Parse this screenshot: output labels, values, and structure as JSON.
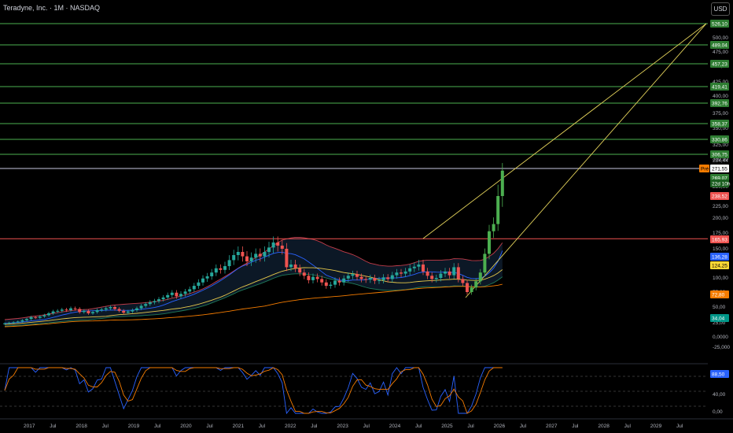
{
  "header": {
    "title": "Teradyne, Inc. · 1M · NASDAQ",
    "currency_label": "USD"
  },
  "colors": {
    "background": "#000000",
    "up": "#26a69a",
    "up_bright": "#4caf50",
    "down": "#ef5350",
    "hline_green": "#4caf50",
    "hline_red": "#ef5350",
    "trendline": "#e2d15a",
    "bb_band": "#c33d4a",
    "ma_blue": "#2962ff",
    "ma_yellow": "#e6c84a",
    "ma_orange": "#f57c00",
    "bb_fill": "#0d1b2a",
    "stoch_k": "#2962ff",
    "stoch_d": "#f57c00"
  },
  "price_axis": {
    "ticks": [
      "500,00",
      "475,00",
      "450,00",
      "425,00",
      "400,00",
      "375,00",
      "350,00",
      "325,00",
      "300,00",
      "284,44",
      "250,00",
      "225,00",
      "200,00",
      "175,00",
      "150,00",
      "125,00",
      "100,00",
      "75,00",
      "50,00",
      "25,00",
      "0,0000",
      "-25,000"
    ],
    "price_tags": [
      {
        "label": "526,10",
        "kind": "green"
      },
      {
        "label": "489,04",
        "kind": "green"
      },
      {
        "label": "457,23",
        "kind": "green"
      },
      {
        "label": "419,41",
        "kind": "green"
      },
      {
        "label": "392,76",
        "kind": "green"
      },
      {
        "label": "358,37",
        "kind": "green"
      },
      {
        "label": "330,86",
        "kind": "green"
      },
      {
        "label": "306,75",
        "kind": "green"
      },
      {
        "label": "271,55",
        "kind": "white"
      },
      {
        "label": "269,07",
        "kind": "green"
      },
      {
        "label": "22d 10h",
        "kind": "green_dark"
      },
      {
        "label": "238,52",
        "kind": "red"
      },
      {
        "label": "165,93",
        "kind": "red"
      },
      {
        "label": "136,28",
        "kind": "blue"
      },
      {
        "label": "124,25",
        "kind": "yellow"
      },
      {
        "label": "72,80",
        "kind": "orange"
      },
      {
        "label": "34,04",
        "kind": "teal"
      }
    ],
    "pre_label": "Pré"
  },
  "oscillator": {
    "ticks": [
      "40,00",
      "0,00"
    ],
    "tags": [
      {
        "label": "88,50",
        "kind": "blue"
      }
    ]
  },
  "time_axis": {
    "labels": [
      "2017",
      "Jul",
      "2018",
      "Jul",
      "2019",
      "Jul",
      "2020",
      "Jul",
      "2021",
      "Jul",
      "2022",
      "Jul",
      "2023",
      "Jul",
      "2024",
      "Jul",
      "2025",
      "Jul",
      "2026",
      "Jul",
      "2027",
      "Jul",
      "2028",
      "Jul",
      "2029",
      "Jul"
    ]
  },
  "chart_data": {
    "type": "candlestick",
    "symbol": "Teradyne, Inc.",
    "interval": "1M",
    "exchange": "NASDAQ",
    "last_price": 269.07,
    "horizontal_levels": [
      526.1,
      489.04,
      457.23,
      419.41,
      392.76,
      358.37,
      330.86,
      306.75,
      271.55,
      165.93
    ],
    "monthly_close": [
      24,
      25,
      26,
      27,
      29,
      31,
      34,
      33,
      35,
      37,
      40,
      43,
      44,
      46,
      45,
      48,
      47,
      42,
      44,
      40,
      42,
      45,
      46,
      48,
      50,
      47,
      44,
      41,
      43,
      45,
      48,
      52,
      55,
      58,
      60,
      63,
      66,
      70,
      74,
      68,
      72,
      76,
      80,
      86,
      92,
      99,
      103,
      110,
      118,
      115,
      122,
      132,
      140,
      145,
      138,
      130,
      136,
      142,
      138,
      145,
      152,
      160,
      155,
      150,
      120,
      125,
      118,
      110,
      104,
      96,
      102,
      98,
      92,
      86,
      88,
      95,
      92,
      99,
      104,
      107,
      102,
      98,
      97,
      100,
      95,
      96,
      101,
      98,
      105,
      110,
      108,
      112,
      118,
      121,
      125,
      112,
      104,
      98,
      100,
      108,
      112,
      105,
      120,
      98,
      91,
      75,
      83,
      94,
      110,
      142,
      178,
      190,
      238,
      269
    ],
    "osc_latest": 88.5
  }
}
